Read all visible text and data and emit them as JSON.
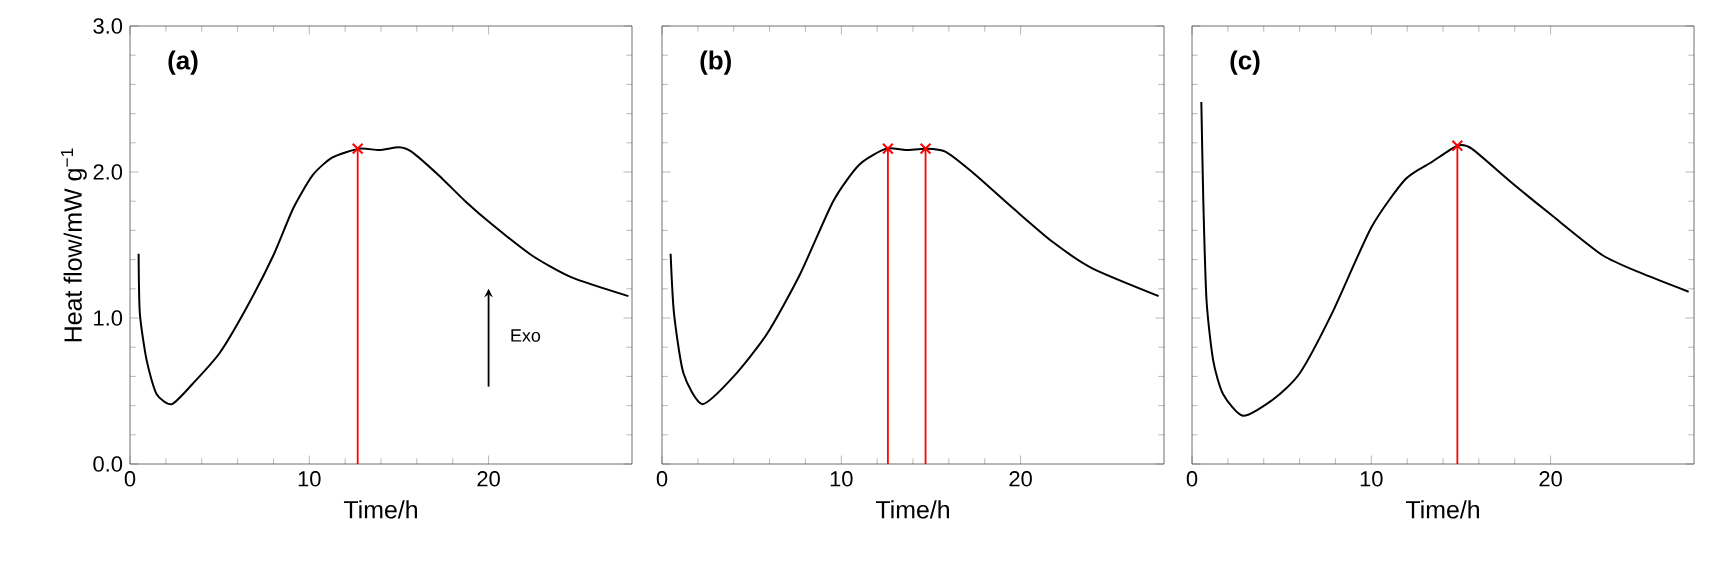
{
  "chart_data": [
    {
      "type": "line",
      "title": "(a)",
      "xlabel": "Time/h",
      "ylabel": "Heat flow/mW g$^{−1}$",
      "xlim": [
        0,
        28
      ],
      "ylim": [
        0,
        3
      ],
      "xticks": [
        0,
        10,
        20
      ],
      "yticks": [
        {
          "value": 0,
          "label": "0.0"
        },
        {
          "value": 1,
          "label": "1.0"
        },
        {
          "value": 2,
          "label": "2.0"
        },
        {
          "value": 3,
          "label": "3.0"
        }
      ],
      "annotations": [
        "Exo"
      ],
      "series": [
        {
          "color": "#000000",
          "x": [
            0.48,
            0.55,
            0.93,
            1.48,
            2.33,
            3.5,
            5,
            6.5,
            8,
            9.1,
            10.2,
            11.3,
            12.8,
            13.9,
            15,
            15.7,
            17.2,
            18.7,
            20.2,
            22.4,
            24.6,
            27.8
          ],
          "values": [
            1.44,
            1.03,
            0.71,
            0.48,
            0.41,
            0.55,
            0.76,
            1.07,
            1.43,
            1.75,
            1.98,
            2.1,
            2.16,
            2.15,
            2.17,
            2.14,
            1.98,
            1.8,
            1.64,
            1.43,
            1.28,
            1.15
          ]
        },
        {
          "type": "lollipop",
          "marker": "cross",
          "color": "#ff0000",
          "x": [
            12.7
          ],
          "values": [
            2.16
          ]
        }
      ]
    },
    {
      "type": "line",
      "title": "(b)",
      "xlabel": "Time/h",
      "xlim": [
        0,
        28
      ],
      "ylim": [
        0,
        3
      ],
      "xticks": [
        0,
        10,
        20
      ],
      "yticks": [
        0,
        1,
        2,
        3
      ],
      "tick_labels": "x",
      "series": [
        {
          "color": "#000000",
          "x": [
            0.48,
            0.67,
            1.2,
            2.26,
            4,
            5.85,
            7.7,
            9.55,
            11,
            12.5,
            13.6,
            14.7,
            15.8,
            17.3,
            19.6,
            21.8,
            24,
            27.7
          ],
          "values": [
            1.44,
            1.03,
            0.62,
            0.41,
            0.6,
            0.89,
            1.3,
            1.8,
            2.05,
            2.16,
            2.15,
            2.16,
            2.14,
            2.0,
            1.75,
            1.52,
            1.34,
            1.15
          ]
        },
        {
          "type": "lollipop",
          "marker": "cross",
          "color": "#ff0000",
          "x": [
            12.6,
            14.7
          ],
          "values": [
            2.16,
            2.16
          ]
        }
      ]
    },
    {
      "type": "line",
      "title": "(c)",
      "xlabel": "Time/h",
      "xlim": [
        0,
        28
      ],
      "ylim": [
        0,
        3
      ],
      "xticks": [
        0,
        10,
        20
      ],
      "yticks": [
        0,
        1,
        2,
        3
      ],
      "tick_labels": "x",
      "series": [
        {
          "color": "#000000",
          "x": [
            0.52,
            0.63,
            0.81,
            1.18,
            1.73,
            2.84,
            4.5,
            6,
            7.8,
            10,
            11.9,
            13.4,
            14.8,
            15.6,
            17.8,
            20,
            22.9,
            25.2,
            27.7
          ],
          "values": [
            2.48,
            1.8,
            1.12,
            0.71,
            0.48,
            0.33,
            0.44,
            0.62,
            1.03,
            1.62,
            1.95,
            2.07,
            2.18,
            2.16,
            1.93,
            1.71,
            1.43,
            1.3,
            1.18
          ]
        },
        {
          "type": "lollipop",
          "marker": "cross",
          "color": "#ff0000",
          "x": [
            14.8
          ],
          "values": [
            2.18
          ]
        }
      ]
    }
  ]
}
